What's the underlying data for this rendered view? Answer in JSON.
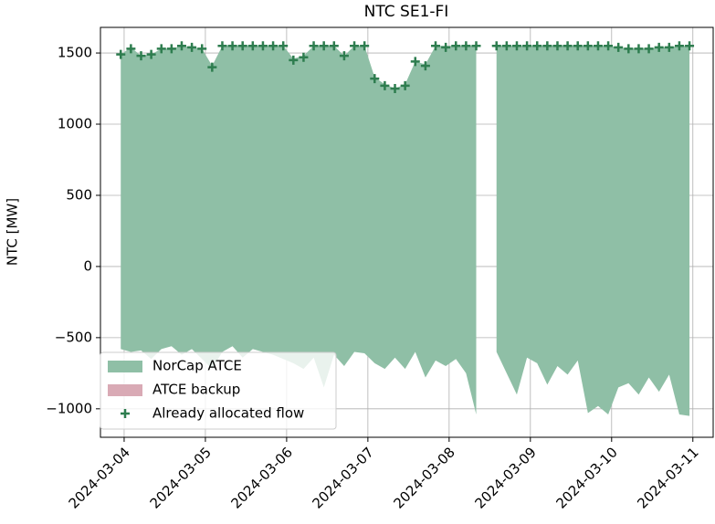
{
  "chart_data": {
    "type": "band",
    "title": "NTC SE1-FI",
    "ylabel": "NTC [MW]",
    "x": [
      "2024-03-03T23:00",
      "2024-03-04T02:00",
      "2024-03-04T05:00",
      "2024-03-04T08:00",
      "2024-03-04T11:00",
      "2024-03-04T14:00",
      "2024-03-04T17:00",
      "2024-03-04T20:00",
      "2024-03-04T23:00",
      "2024-03-05T02:00",
      "2024-03-05T05:00",
      "2024-03-05T08:00",
      "2024-03-05T11:00",
      "2024-03-05T14:00",
      "2024-03-05T17:00",
      "2024-03-05T20:00",
      "2024-03-05T23:00",
      "2024-03-06T02:00",
      "2024-03-06T05:00",
      "2024-03-06T08:00",
      "2024-03-06T11:00",
      "2024-03-06T14:00",
      "2024-03-06T17:00",
      "2024-03-06T20:00",
      "2024-03-06T23:00",
      "2024-03-07T02:00",
      "2024-03-07T05:00",
      "2024-03-07T08:00",
      "2024-03-07T11:00",
      "2024-03-07T14:00",
      "2024-03-07T17:00",
      "2024-03-07T20:00",
      "2024-03-07T23:00",
      "2024-03-08T02:00",
      "2024-03-08T05:00",
      "2024-03-08T08:00",
      "2024-03-08T11:00",
      "2024-03-08T14:00",
      "2024-03-08T17:00",
      "2024-03-08T20:00",
      "2024-03-08T23:00",
      "2024-03-09T02:00",
      "2024-03-09T05:00",
      "2024-03-09T08:00",
      "2024-03-09T11:00",
      "2024-03-09T14:00",
      "2024-03-09T17:00",
      "2024-03-09T20:00",
      "2024-03-09T23:00",
      "2024-03-10T02:00",
      "2024-03-10T05:00",
      "2024-03-10T08:00",
      "2024-03-10T11:00",
      "2024-03-10T14:00",
      "2024-03-10T17:00",
      "2024-03-10T20:00",
      "2024-03-10T23:00"
    ],
    "series": [
      {
        "name": "NorCap ATCE",
        "color": "#8fbfa6",
        "values": [
          1490,
          1540,
          1480,
          1490,
          1530,
          1530,
          1550,
          1540,
          1530,
          1410,
          1550,
          1550,
          1550,
          1550,
          1550,
          1550,
          1550,
          1460,
          1480,
          1550,
          1550,
          1550,
          1480,
          1550,
          1550,
          1330,
          1280,
          1250,
          1280,
          1440,
          1420,
          1550,
          1550,
          1550,
          1550,
          1550,
          null,
          1550,
          1550,
          1550,
          1550,
          1550,
          1550,
          1550,
          1550,
          1550,
          1550,
          1550,
          1550,
          1540,
          1530,
          1530,
          1530,
          1540,
          1540,
          1550,
          1550
        ],
        "lower": [
          -580,
          -600,
          -590,
          -650,
          -580,
          -560,
          -620,
          -580,
          -650,
          -720,
          -600,
          -560,
          -640,
          -580,
          -600,
          -620,
          -650,
          -680,
          -720,
          -640,
          -850,
          -620,
          -700,
          -600,
          -610,
          -680,
          -720,
          -640,
          -720,
          -600,
          -780,
          -660,
          -700,
          -650,
          -750,
          -1040,
          null,
          -600,
          -750,
          -900,
          -640,
          -680,
          -830,
          -700,
          -760,
          -660,
          -1030,
          -980,
          -1040,
          -850,
          -820,
          -900,
          -780,
          -880,
          -760,
          -1040,
          -1050
        ]
      },
      {
        "name": "ATCE backup",
        "color": "#d9aab5"
      },
      {
        "name": "Already allocated flow",
        "color": "#2e7d4f",
        "values": [
          1490,
          1530,
          1480,
          1490,
          1530,
          1530,
          1550,
          1540,
          1530,
          1400,
          1550,
          1550,
          1550,
          1550,
          1550,
          1550,
          1550,
          1450,
          1470,
          1550,
          1550,
          1550,
          1480,
          1550,
          1550,
          1320,
          1270,
          1250,
          1270,
          1440,
          1410,
          1550,
          1540,
          1550,
          1550,
          1550,
          null,
          1550,
          1550,
          1550,
          1550,
          1550,
          1550,
          1550,
          1550,
          1550,
          1550,
          1550,
          1550,
          1540,
          1530,
          1530,
          1530,
          1540,
          1540,
          1550,
          1550
        ]
      }
    ],
    "xlim": [
      "2024-03-03T17:00",
      "2024-03-11T06:00"
    ],
    "xticks": [
      "2024-03-04",
      "2024-03-05",
      "2024-03-06",
      "2024-03-07",
      "2024-03-08",
      "2024-03-09",
      "2024-03-10",
      "2024-03-11"
    ],
    "ylim": [
      -1200,
      1680
    ],
    "yticks": [
      {
        "value": -1000,
        "label": "−1000"
      },
      {
        "value": -500,
        "label": "−500"
      },
      0,
      500,
      1000,
      1500
    ],
    "grid": true,
    "legend": "lower left"
  }
}
